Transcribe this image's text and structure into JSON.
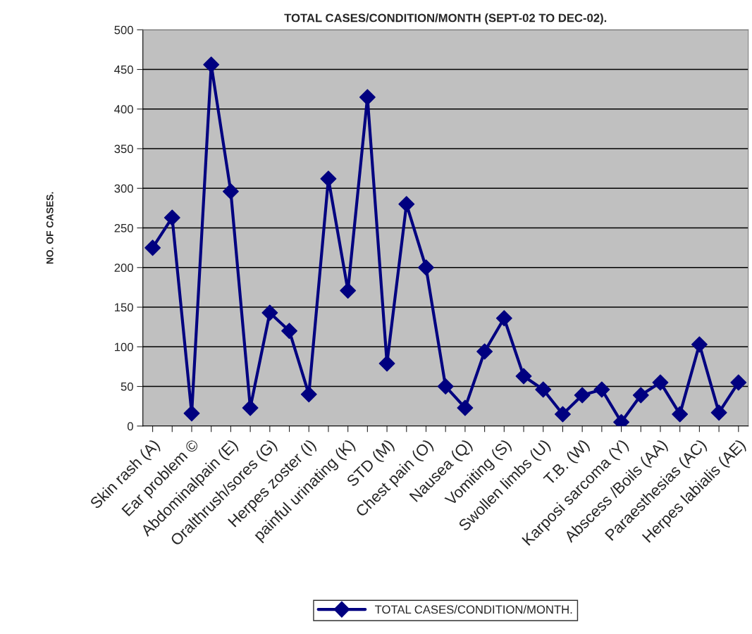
{
  "chart_data": {
    "type": "line",
    "title": "TOTAL CASES/CONDITION/MONTH (SEPT-02 TO DEC-02).",
    "ylabel": "NO. OF CASES.",
    "categories": [
      "Skin rash (A)",
      null,
      "Ear problem ©",
      null,
      "Abdominalpain (E)",
      null,
      "Oralthrush/sores (G)",
      null,
      "Herpes zoster (I)",
      null,
      "painful urinating (K)",
      null,
      "STD (M)",
      null,
      "Chest pain (O)",
      null,
      "Nausea (Q)",
      null,
      "Vomiting (S)",
      null,
      "Swollen limbs (U)",
      null,
      "T.B. (W)",
      null,
      "Karposi sarcoma (Y)",
      null,
      "Abscess /Boils (AA)",
      null,
      "Paraesthesias (AC)",
      null,
      "Herpes labialis (AE)"
    ],
    "series": [
      {
        "name": "TOTAL CASES/CONDITION/MONTH.",
        "color": "#000080",
        "values": [
          225,
          263,
          16,
          456,
          296,
          23,
          143,
          120,
          40,
          312,
          171,
          415,
          79,
          280,
          200,
          50,
          23,
          94,
          136,
          63,
          46,
          15,
          39,
          46,
          5,
          39,
          55,
          15,
          103,
          17,
          55
        ]
      }
    ],
    "ylim": [
      0,
      500
    ],
    "yticks": [
      0,
      50,
      100,
      150,
      200,
      250,
      300,
      350,
      400,
      450,
      500
    ],
    "grid": "y",
    "legend": "bottom",
    "marker": "diamond",
    "line_style": "solid"
  }
}
